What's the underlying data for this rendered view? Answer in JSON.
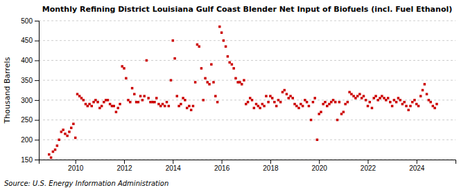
{
  "chart_data": {
    "type": "scatter",
    "title": "Monthly Refining District Louisiana Gulf Coast Blender Net Input of Biofuels (incl. Fuel Ethanol)",
    "ylabel": "Thousand Barrels",
    "annotations": [
      "Source: U.S. Energy Information Administration"
    ],
    "color": "#cc0000",
    "marker": "square",
    "grid": true,
    "xlim": [
      2008.5,
      2025.6
    ],
    "ylim": [
      150,
      500
    ],
    "xticks": [
      2010,
      2012,
      2014,
      2016,
      2018,
      2020,
      2022,
      2024
    ],
    "yticks": [
      150,
      200,
      250,
      300,
      350,
      400,
      450,
      500
    ],
    "x": [
      2008.92,
      2009.0,
      2009.08,
      2009.17,
      2009.25,
      2009.33,
      2009.42,
      2009.5,
      2009.58,
      2009.67,
      2009.75,
      2009.83,
      2009.92,
      2010.0,
      2010.08,
      2010.17,
      2010.25,
      2010.33,
      2010.42,
      2010.5,
      2010.58,
      2010.67,
      2010.75,
      2010.83,
      2010.92,
      2011.0,
      2011.08,
      2011.17,
      2011.25,
      2011.33,
      2011.42,
      2011.5,
      2011.58,
      2011.67,
      2011.75,
      2011.83,
      2011.92,
      2012.0,
      2012.08,
      2012.17,
      2012.25,
      2012.33,
      2012.42,
      2012.5,
      2012.58,
      2012.67,
      2012.75,
      2012.83,
      2012.92,
      2013.0,
      2013.08,
      2013.17,
      2013.25,
      2013.33,
      2013.42,
      2013.5,
      2013.58,
      2013.67,
      2013.75,
      2013.83,
      2013.92,
      2014.0,
      2014.08,
      2014.17,
      2014.25,
      2014.33,
      2014.42,
      2014.5,
      2014.58,
      2014.67,
      2014.75,
      2014.83,
      2014.92,
      2015.0,
      2015.08,
      2015.17,
      2015.25,
      2015.33,
      2015.42,
      2015.5,
      2015.58,
      2015.67,
      2015.75,
      2015.83,
      2015.92,
      2016.0,
      2016.08,
      2016.17,
      2016.25,
      2016.33,
      2016.42,
      2016.5,
      2016.58,
      2016.67,
      2016.75,
      2016.83,
      2016.92,
      2017.0,
      2017.08,
      2017.17,
      2017.25,
      2017.33,
      2017.42,
      2017.5,
      2017.58,
      2017.67,
      2017.75,
      2017.83,
      2017.92,
      2018.0,
      2018.08,
      2018.17,
      2018.25,
      2018.33,
      2018.42,
      2018.5,
      2018.58,
      2018.67,
      2018.75,
      2018.83,
      2018.92,
      2019.0,
      2019.08,
      2019.17,
      2019.25,
      2019.33,
      2019.42,
      2019.5,
      2019.58,
      2019.67,
      2019.75,
      2019.83,
      2019.92,
      2020.0,
      2020.08,
      2020.17,
      2020.25,
      2020.33,
      2020.42,
      2020.5,
      2020.58,
      2020.67,
      2020.75,
      2020.83,
      2020.92,
      2021.0,
      2021.08,
      2021.17,
      2021.25,
      2021.33,
      2021.42,
      2021.5,
      2021.58,
      2021.67,
      2021.75,
      2021.83,
      2021.92,
      2022.0,
      2022.08,
      2022.17,
      2022.25,
      2022.33,
      2022.42,
      2022.5,
      2022.58,
      2022.67,
      2022.75,
      2022.83,
      2022.92,
      2023.0,
      2023.08,
      2023.17,
      2023.25,
      2023.33,
      2023.42,
      2023.5,
      2023.58,
      2023.67,
      2023.75,
      2023.83,
      2023.92,
      2024.0,
      2024.08,
      2024.17,
      2024.25,
      2024.33,
      2024.42,
      2024.5,
      2024.58,
      2024.67,
      2024.75,
      2024.83
    ],
    "values": [
      163,
      155,
      170,
      175,
      185,
      200,
      220,
      225,
      215,
      210,
      220,
      230,
      240,
      205,
      315,
      310,
      305,
      300,
      290,
      285,
      290,
      285,
      295,
      300,
      295,
      280,
      285,
      295,
      300,
      300,
      290,
      285,
      285,
      270,
      280,
      290,
      385,
      380,
      355,
      300,
      295,
      330,
      315,
      295,
      295,
      310,
      300,
      310,
      400,
      305,
      295,
      295,
      295,
      305,
      290,
      285,
      290,
      285,
      295,
      285,
      350,
      450,
      405,
      310,
      285,
      290,
      305,
      300,
      280,
      285,
      275,
      285,
      345,
      440,
      435,
      380,
      300,
      355,
      345,
      340,
      390,
      345,
      310,
      295,
      485,
      470,
      450,
      435,
      410,
      395,
      390,
      380,
      355,
      345,
      345,
      340,
      350,
      290,
      295,
      305,
      300,
      280,
      290,
      285,
      280,
      290,
      285,
      310,
      295,
      310,
      305,
      295,
      285,
      300,
      295,
      320,
      325,
      315,
      305,
      310,
      305,
      290,
      285,
      280,
      290,
      285,
      300,
      295,
      285,
      250,
      295,
      305,
      200,
      265,
      270,
      290,
      295,
      285,
      290,
      295,
      300,
      295,
      250,
      295,
      265,
      270,
      290,
      295,
      320,
      315,
      310,
      305,
      310,
      315,
      305,
      310,
      300,
      285,
      295,
      280,
      305,
      310,
      300,
      305,
      310,
      305,
      300,
      305,
      295,
      285,
      300,
      295,
      305,
      300,
      290,
      295,
      285,
      275,
      285,
      295,
      300,
      290,
      285,
      310,
      325,
      340,
      315,
      300,
      295,
      285,
      280,
      290
    ]
  }
}
